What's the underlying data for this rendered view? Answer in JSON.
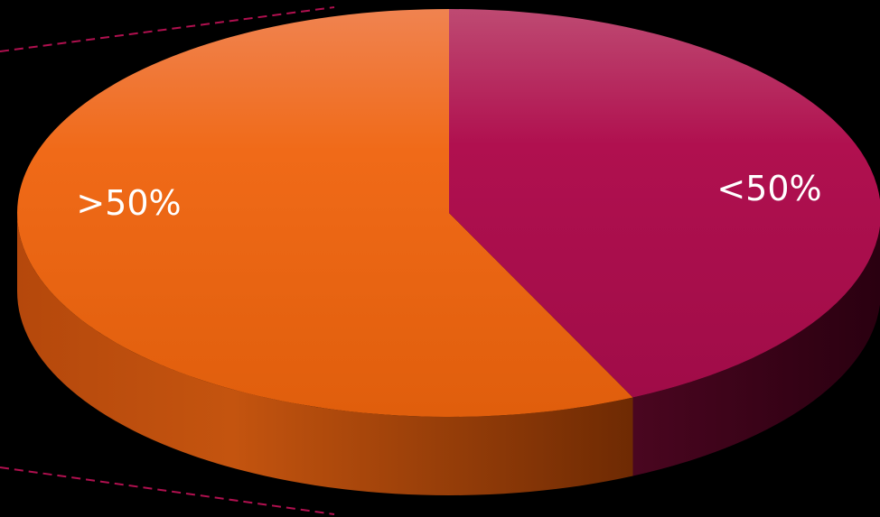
{
  "chart_data": {
    "type": "pie",
    "style": "3d",
    "categories": [
      ">50%",
      "<50%"
    ],
    "values": [
      57,
      43
    ],
    "colors": [
      "#EE6A1C",
      "#B0104F"
    ],
    "legend": "none"
  },
  "colors": {
    "background": "#000000",
    "callout_line": "#B0104F"
  }
}
